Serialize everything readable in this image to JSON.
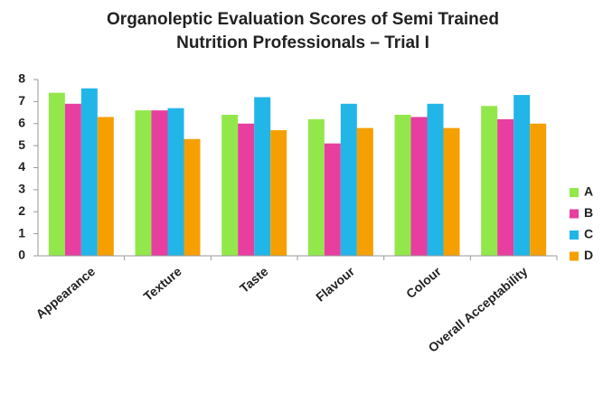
{
  "chart_data": {
    "type": "bar",
    "title": [
      "Organoleptic Evaluation Scores of Semi Trained",
      "Nutrition Professionals – Trial I"
    ],
    "categories": [
      "Appearance",
      "Texture",
      "Taste",
      "Flavour",
      "Colour",
      "Overall Acceptability"
    ],
    "series": [
      {
        "name": "A",
        "color": "#92e84a",
        "values": [
          7.4,
          6.6,
          6.4,
          6.2,
          6.4,
          6.8
        ]
      },
      {
        "name": "B",
        "color": "#e83ea0",
        "values": [
          6.9,
          6.6,
          6.0,
          5.1,
          6.3,
          6.2
        ]
      },
      {
        "name": "C",
        "color": "#22b5e8",
        "values": [
          7.6,
          6.7,
          7.2,
          6.9,
          6.9,
          7.3
        ]
      },
      {
        "name": "D",
        "color": "#f5a000",
        "values": [
          6.3,
          5.3,
          5.7,
          5.8,
          5.8,
          6.0
        ]
      }
    ],
    "ylim": [
      0,
      8
    ],
    "yticks": [
      0,
      1,
      2,
      3,
      4,
      5,
      6,
      7,
      8
    ],
    "grid": false,
    "legend": "right"
  }
}
